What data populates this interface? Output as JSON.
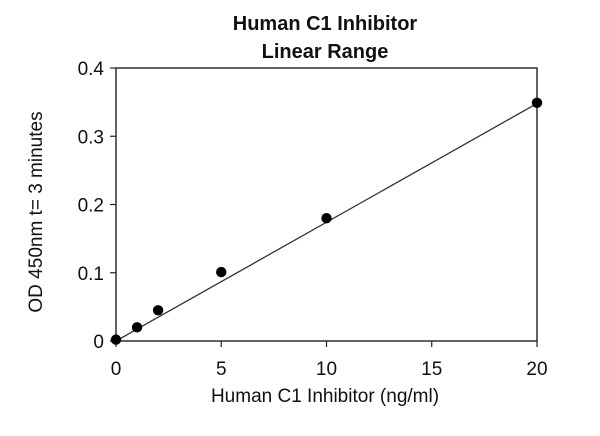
{
  "chart_data": {
    "type": "scatter",
    "title_lines": [
      "Human  C1 Inhibitor",
      "Linear  Range"
    ],
    "xlabel": "Human  C1 Inhibitor (ng/ml)",
    "ylabel": "OD 450nm t= 3 minutes",
    "xlim": [
      0,
      20
    ],
    "ylim": [
      0,
      0.4
    ],
    "xticks": [
      0,
      5,
      10,
      15,
      20
    ],
    "yticks": [
      0,
      0.1,
      0.2,
      0.3,
      0.4
    ],
    "xtick_labels": [
      "0",
      "5",
      "10",
      "15",
      "20"
    ],
    "ytick_labels": [
      "0",
      "0.1",
      "0.2",
      "0.3",
      "0.4"
    ],
    "grid": false,
    "series": [
      {
        "x": [
          0,
          1,
          2,
          5,
          10,
          20
        ],
        "y": [
          0.002,
          0.02,
          0.045,
          0.101,
          0.18,
          0.349
        ],
        "marker": "circle",
        "color": "#000000"
      }
    ],
    "trendline": {
      "type": "linear",
      "x": [
        0,
        20
      ],
      "y": [
        0,
        0.348
      ],
      "color": "#333333"
    }
  }
}
